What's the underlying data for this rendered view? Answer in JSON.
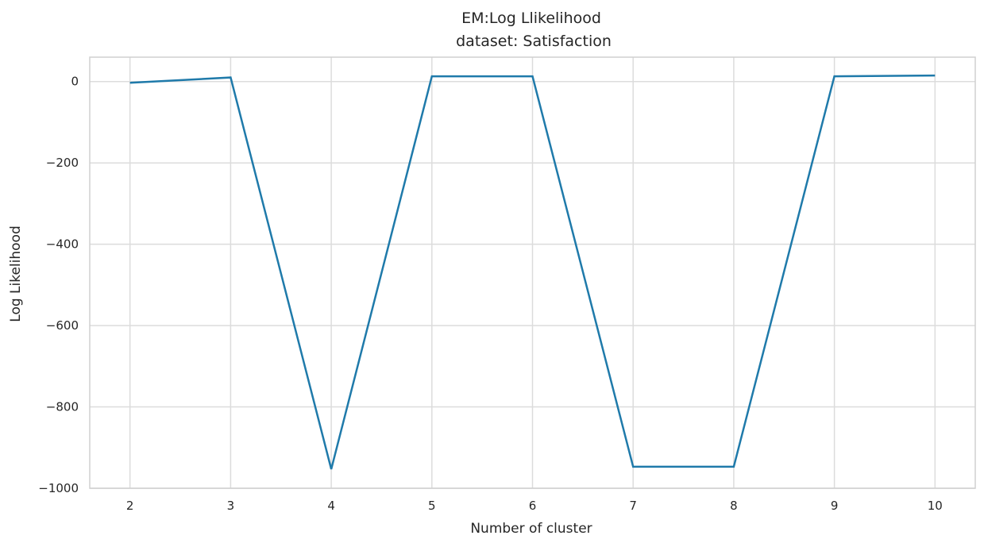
{
  "chart_data": {
    "type": "line",
    "title": "EM:Log Llikelihood",
    "subtitle": "dataset: Satisfaction",
    "xlabel": "Number of cluster",
    "ylabel": "Log Likelihood",
    "x": [
      2,
      3,
      4,
      5,
      6,
      7,
      8,
      9,
      10
    ],
    "series": [
      {
        "color": "#1f7aaa",
        "values": [
          -3,
          10,
          -953,
          13,
          13,
          -947,
          -947,
          13,
          15
        ]
      }
    ],
    "xticks": [
      "2",
      "3",
      "4",
      "5",
      "6",
      "7",
      "8",
      "9",
      "10"
    ],
    "yticks": [
      "0",
      "−200",
      "−400",
      "−600",
      "−800",
      "−1000"
    ],
    "ytick_values": [
      0,
      -200,
      -400,
      -600,
      -800,
      -1000
    ],
    "xlim": [
      1.6,
      10.4
    ],
    "ylim": [
      -1000,
      60
    ],
    "grid": true
  }
}
